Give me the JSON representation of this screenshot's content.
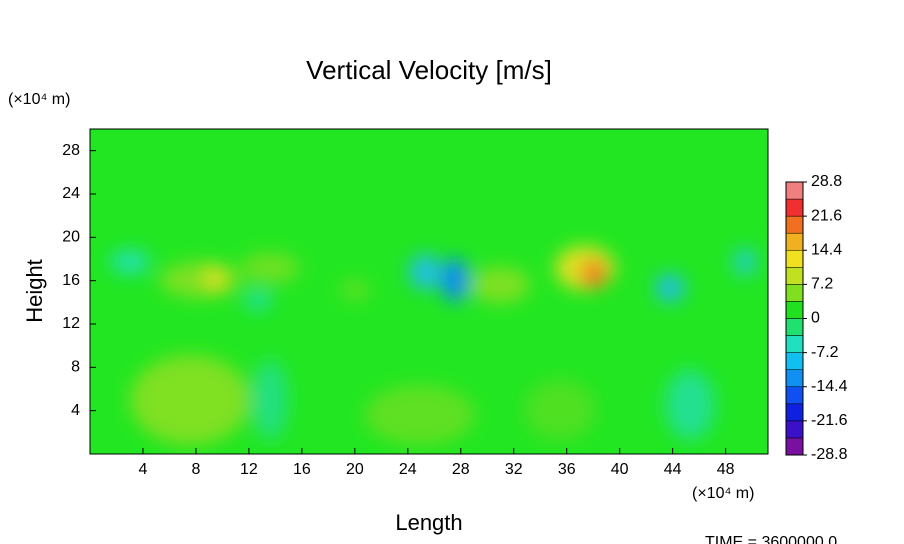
{
  "chart_data": {
    "type": "contour",
    "title": "Vertical Velocity [m/s]",
    "xlabel": "Length",
    "ylabel": "Height",
    "x_unit": "(×10⁴ m)",
    "y_unit": "(×10⁴ m)",
    "footer": "TIME = 3600000.0",
    "xlim": [
      0,
      51.2
    ],
    "ylim": [
      0,
      30
    ],
    "xticks": [
      4,
      8,
      12,
      16,
      20,
      24,
      28,
      32,
      36,
      40,
      44,
      48
    ],
    "yticks": [
      4,
      8,
      12,
      16,
      20,
      24,
      28
    ],
    "colorbar": {
      "lim": [
        -28.8,
        28.8
      ],
      "ticks": [
        -28.8,
        -21.6,
        -14.4,
        -7.2,
        0,
        7.2,
        14.4,
        21.6,
        28.8
      ],
      "colors": [
        "#7a10a0",
        "#3a10c8",
        "#1020e0",
        "#1050f0",
        "#1090f0",
        "#10c0f0",
        "#20e0c0",
        "#20e070",
        "#20e020",
        "#80e020",
        "#c0e020",
        "#f0e020",
        "#f0b020",
        "#f07020",
        "#f03030",
        "#f08080"
      ]
    }
  }
}
